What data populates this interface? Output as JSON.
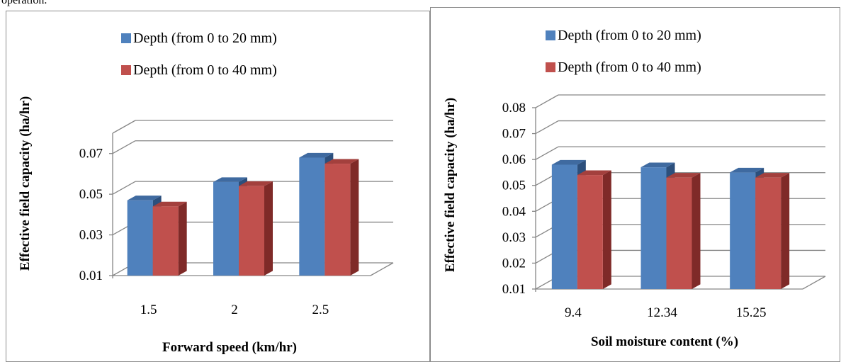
{
  "caption_fragment": "operation.",
  "colors": {
    "depth20_front": "#4F81BD",
    "depth20_top": "#3f6aa0",
    "depth20_side": "#2c4f7c",
    "depth40_front": "#C0504D",
    "depth40_top": "#a3403d",
    "depth40_side": "#7f2a28",
    "grid": "#868686"
  },
  "chart_data": [
    {
      "type": "bar",
      "title": "",
      "xlabel": "Forward speed (km/hr)",
      "ylabel": "Effective field capacity (ha/hr)",
      "categories": [
        "1.5",
        "2",
        "2.5"
      ],
      "yticks": [
        "0.01",
        "0.03",
        "0.05",
        "0.07"
      ],
      "ylim": [
        0.01,
        0.08
      ],
      "legend_position": "top",
      "series": [
        {
          "name": "Depth (from 0 to 20 mm)",
          "values": [
            0.047,
            0.056,
            0.068
          ]
        },
        {
          "name": "Depth (from 0 to 40 mm)",
          "values": [
            0.044,
            0.054,
            0.065
          ]
        }
      ]
    },
    {
      "type": "bar",
      "title": "",
      "xlabel": "Soil moisture content (%)",
      "ylabel": "Effective field capacity (ha/hr)",
      "categories": [
        "9.4",
        "12.34",
        "15.25"
      ],
      "yticks": [
        "0.01",
        "0.02",
        "0.03",
        "0.04",
        "0.05",
        "0.06",
        "0.07",
        "0.08"
      ],
      "ylim": [
        0.01,
        0.08
      ],
      "legend_position": "top",
      "series": [
        {
          "name": "Depth (from 0 to 20 mm)",
          "values": [
            0.058,
            0.057,
            0.055
          ]
        },
        {
          "name": "Depth (from 0 to 40 mm)",
          "values": [
            0.054,
            0.053,
            0.053
          ]
        }
      ]
    }
  ]
}
